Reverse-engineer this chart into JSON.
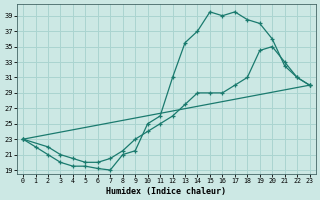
{
  "xlabel": "Humidex (Indice chaleur)",
  "bg_color": "#cce8e4",
  "grid_color": "#aad4d0",
  "line_color": "#1a7a6e",
  "xlim": [
    -0.5,
    23.5
  ],
  "ylim": [
    18.5,
    40.5
  ],
  "xticks": [
    0,
    1,
    2,
    3,
    4,
    5,
    6,
    7,
    8,
    9,
    10,
    11,
    12,
    13,
    14,
    15,
    16,
    17,
    18,
    19,
    20,
    21,
    22,
    23
  ],
  "yticks": [
    19,
    21,
    23,
    25,
    27,
    29,
    31,
    33,
    35,
    37,
    39
  ],
  "line1_x": [
    0,
    1,
    2,
    3,
    4,
    5,
    6,
    7,
    8,
    9,
    10,
    11,
    12,
    13,
    14,
    15,
    16,
    17,
    18,
    19,
    20,
    21,
    22,
    23
  ],
  "line1_y": [
    23,
    22,
    21,
    20,
    19.5,
    19.5,
    19.2,
    19,
    21,
    21.5,
    25,
    26,
    31,
    35.5,
    37,
    39.5,
    39,
    39.5,
    38.5,
    38,
    36,
    32.5,
    31,
    30
  ],
  "line2_x": [
    0,
    2,
    3,
    4,
    5,
    6,
    7,
    8,
    9,
    10,
    11,
    12,
    13,
    14,
    15,
    16,
    17,
    18,
    19,
    20,
    21,
    22,
    23
  ],
  "line2_y": [
    23,
    22,
    21,
    20.5,
    20,
    20,
    20.5,
    21.5,
    23,
    24,
    25,
    26,
    27.5,
    29,
    29,
    29,
    30,
    31,
    34.5,
    35,
    33,
    31,
    30
  ],
  "line3_x": [
    0,
    23
  ],
  "line3_y": [
    23,
    30
  ]
}
